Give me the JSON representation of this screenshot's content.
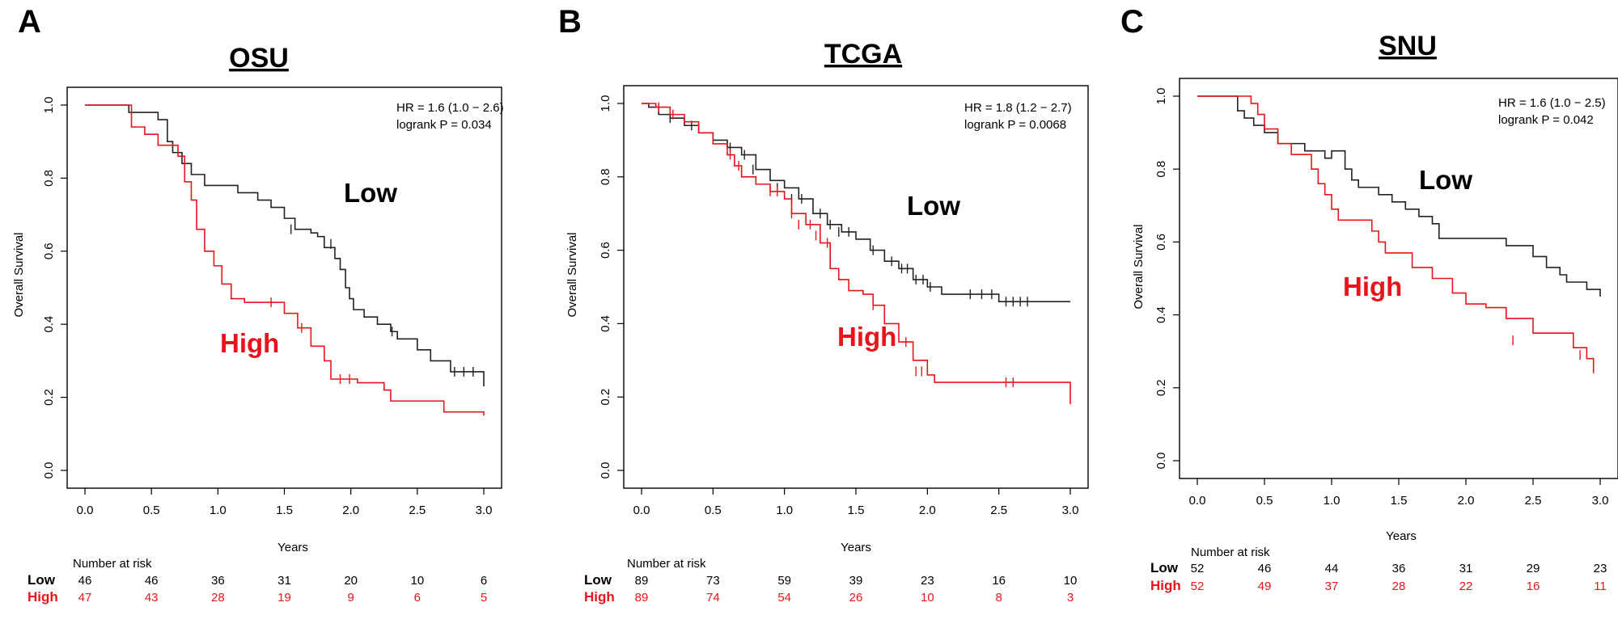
{
  "colors": {
    "low": "#222222",
    "high": "#e8141b",
    "axis": "#000000"
  },
  "chart_data": [
    {
      "type": "line",
      "panel_label": "A",
      "title": "OSU",
      "xlabel": "Years",
      "ylabel": "Overall Survival",
      "xlim": [
        0,
        3
      ],
      "ylim": [
        0,
        1
      ],
      "x_ticks": [
        "0.0",
        "0.5",
        "1.0",
        "1.5",
        "2.0",
        "2.5",
        "3.0"
      ],
      "y_ticks": [
        "0.0",
        "0.2",
        "0.4",
        "0.6",
        "0.8",
        "1.0"
      ],
      "hr_text": "HR = 1.6 (1.0 − 2.6)",
      "p_text": "logrank P = 0.034",
      "series": [
        {
          "name": "Low",
          "label": "Low",
          "x": [
            0,
            0.33,
            0.55,
            0.62,
            0.66,
            0.73,
            0.8,
            0.9,
            1.15,
            1.3,
            1.4,
            1.5,
            1.58,
            1.7,
            1.75,
            1.8,
            1.88,
            1.92,
            1.96,
            1.99,
            2.02,
            2.1,
            2.2,
            2.3,
            2.35,
            2.5,
            2.6,
            2.75,
            3.0
          ],
          "y": [
            1,
            0.98,
            0.96,
            0.9,
            0.87,
            0.84,
            0.81,
            0.78,
            0.76,
            0.74,
            0.72,
            0.69,
            0.66,
            0.65,
            0.64,
            0.61,
            0.58,
            0.55,
            0.5,
            0.47,
            0.44,
            0.42,
            0.4,
            0.38,
            0.36,
            0.33,
            0.3,
            0.27,
            0.23
          ],
          "censor_x": [
            1.55,
            1.85,
            2.31,
            2.78,
            2.85,
            2.92
          ],
          "censor_y": [
            0.66,
            0.62,
            0.38,
            0.27,
            0.27,
            0.27
          ]
        },
        {
          "name": "High",
          "label": "High",
          "x": [
            0,
            0.35,
            0.45,
            0.55,
            0.7,
            0.75,
            0.8,
            0.84,
            0.9,
            0.97,
            1.03,
            1.1,
            1.2,
            1.5,
            1.6,
            1.7,
            1.8,
            1.85,
            2.05,
            2.25,
            2.3,
            2.7,
            3.0
          ],
          "y": [
            1,
            0.94,
            0.92,
            0.89,
            0.86,
            0.79,
            0.74,
            0.66,
            0.6,
            0.56,
            0.51,
            0.47,
            0.46,
            0.43,
            0.39,
            0.34,
            0.3,
            0.25,
            0.24,
            0.22,
            0.19,
            0.16,
            0.15
          ],
          "censor_x": [
            1.4,
            1.63,
            1.92,
            1.99
          ],
          "censor_y": [
            0.46,
            0.39,
            0.25,
            0.25
          ]
        }
      ],
      "risk_table": {
        "title": "Number at risk",
        "rows": [
          {
            "label": "Low",
            "values": [
              "46",
              "46",
              "36",
              "31",
              "20",
              "10",
              "6"
            ]
          },
          {
            "label": "High",
            "values": [
              "47",
              "43",
              "28",
              "19",
              "9",
              "6",
              "5"
            ]
          }
        ]
      }
    },
    {
      "type": "line",
      "panel_label": "B",
      "title": "TCGA",
      "xlabel": "Years",
      "ylabel": "Overall Survival",
      "xlim": [
        0,
        3
      ],
      "ylim": [
        0,
        1
      ],
      "x_ticks": [
        "0.0",
        "0.5",
        "1.0",
        "1.5",
        "2.0",
        "2.5",
        "3.0"
      ],
      "y_ticks": [
        "0.0",
        "0.2",
        "0.4",
        "0.6",
        "0.8",
        "1.0"
      ],
      "hr_text": "HR = 1.8 (1.2 − 2.7)",
      "p_text": "logrank P = 0.0068",
      "series": [
        {
          "name": "Low",
          "label": "Low",
          "x": [
            0,
            0.05,
            0.12,
            0.2,
            0.3,
            0.4,
            0.5,
            0.6,
            0.7,
            0.8,
            0.9,
            1.0,
            1.1,
            1.2,
            1.3,
            1.4,
            1.5,
            1.6,
            1.7,
            1.8,
            1.9,
            2.0,
            2.1,
            2.5,
            3.0
          ],
          "y": [
            1,
            0.99,
            0.97,
            0.96,
            0.94,
            0.92,
            0.9,
            0.88,
            0.86,
            0.82,
            0.79,
            0.77,
            0.74,
            0.7,
            0.67,
            0.65,
            0.63,
            0.6,
            0.57,
            0.55,
            0.52,
            0.5,
            0.48,
            0.46,
            0.46
          ],
          "censor_x": [
            0.2,
            0.35,
            0.62,
            0.72,
            0.78,
            0.95,
            1.05,
            1.12,
            1.25,
            1.32,
            1.38,
            1.45,
            1.62,
            1.75,
            1.82,
            1.86,
            1.92,
            1.97,
            2.02,
            2.3,
            2.38,
            2.45,
            2.55,
            2.6,
            2.65,
            2.7
          ],
          "censor_y": [
            0.96,
            0.94,
            0.88,
            0.86,
            0.82,
            0.77,
            0.74,
            0.74,
            0.7,
            0.67,
            0.65,
            0.65,
            0.6,
            0.57,
            0.55,
            0.55,
            0.52,
            0.52,
            0.5,
            0.48,
            0.48,
            0.48,
            0.46,
            0.46,
            0.46,
            0.46
          ]
        },
        {
          "name": "High",
          "label": "High",
          "x": [
            0,
            0.1,
            0.2,
            0.3,
            0.4,
            0.5,
            0.6,
            0.65,
            0.7,
            0.8,
            0.9,
            1.0,
            1.05,
            1.15,
            1.25,
            1.32,
            1.38,
            1.45,
            1.55,
            1.62,
            1.7,
            1.8,
            1.9,
            2.0,
            2.05,
            2.95,
            3.0
          ],
          "y": [
            1,
            0.99,
            0.97,
            0.95,
            0.92,
            0.89,
            0.86,
            0.83,
            0.8,
            0.78,
            0.76,
            0.74,
            0.7,
            0.67,
            0.62,
            0.55,
            0.52,
            0.49,
            0.48,
            0.45,
            0.4,
            0.35,
            0.3,
            0.26,
            0.24,
            0.24,
            0.18
          ],
          "censor_x": [
            0.12,
            0.22,
            0.62,
            0.68,
            0.9,
            0.95,
            1.05,
            1.1,
            1.18,
            1.22,
            1.3,
            1.62,
            1.85,
            1.92,
            1.96,
            2.55,
            2.6
          ],
          "censor_y": [
            0.99,
            0.97,
            0.86,
            0.83,
            0.76,
            0.76,
            0.7,
            0.67,
            0.67,
            0.64,
            0.62,
            0.45,
            0.35,
            0.27,
            0.27,
            0.24,
            0.24
          ]
        }
      ],
      "risk_table": {
        "title": "Number at risk",
        "rows": [
          {
            "label": "Low",
            "values": [
              "89",
              "73",
              "59",
              "39",
              "23",
              "16",
              "10"
            ]
          },
          {
            "label": "High",
            "values": [
              "89",
              "74",
              "54",
              "26",
              "10",
              "8",
              "3"
            ]
          }
        ]
      }
    },
    {
      "type": "line",
      "panel_label": "C",
      "title": "SNU",
      "xlabel": "Years",
      "ylabel": "Overall Survival",
      "xlim": [
        0,
        3
      ],
      "ylim": [
        0,
        1
      ],
      "x_ticks": [
        "0.0",
        "0.5",
        "1.0",
        "1.5",
        "2.0",
        "2.5",
        "3.0"
      ],
      "y_ticks": [
        "0.0",
        "0.2",
        "0.4",
        "0.6",
        "0.8",
        "1.0"
      ],
      "hr_text": "HR = 1.6 (1.0 − 2.5)",
      "p_text": "logrank P = 0.042",
      "series": [
        {
          "name": "Low",
          "label": "Low",
          "x": [
            0,
            0.3,
            0.35,
            0.42,
            0.5,
            0.6,
            0.8,
            0.95,
            1.0,
            1.1,
            1.15,
            1.2,
            1.35,
            1.45,
            1.55,
            1.65,
            1.75,
            1.8,
            2.3,
            2.5,
            2.6,
            2.7,
            2.75,
            2.9,
            3.0
          ],
          "y": [
            1,
            0.96,
            0.94,
            0.92,
            0.9,
            0.87,
            0.85,
            0.83,
            0.85,
            0.8,
            0.77,
            0.75,
            0.73,
            0.71,
            0.69,
            0.67,
            0.65,
            0.61,
            0.59,
            0.56,
            0.53,
            0.51,
            0.49,
            0.47,
            0.45
          ],
          "censor_x": [],
          "censor_y": []
        },
        {
          "name": "High",
          "label": "High",
          "x": [
            0,
            0.4,
            0.45,
            0.5,
            0.6,
            0.7,
            0.85,
            0.9,
            0.95,
            1.0,
            1.05,
            1.3,
            1.35,
            1.4,
            1.6,
            1.75,
            1.9,
            2.0,
            2.15,
            2.3,
            2.5,
            2.8,
            2.9,
            2.95
          ],
          "y": [
            1,
            0.98,
            0.95,
            0.91,
            0.87,
            0.84,
            0.8,
            0.76,
            0.73,
            0.69,
            0.66,
            0.63,
            0.6,
            0.57,
            0.53,
            0.5,
            0.46,
            0.43,
            0.42,
            0.39,
            0.35,
            0.31,
            0.28,
            0.24
          ],
          "censor_x": [
            2.35,
            2.85
          ],
          "censor_y": [
            0.33,
            0.29
          ]
        }
      ],
      "risk_table": {
        "title": "Number at risk",
        "rows": [
          {
            "label": "Low",
            "values": [
              "52",
              "46",
              "44",
              "36",
              "31",
              "29",
              "23"
            ]
          },
          {
            "label": "High",
            "values": [
              "52",
              "49",
              "37",
              "28",
              "22",
              "16",
              "11"
            ]
          }
        ]
      }
    }
  ]
}
